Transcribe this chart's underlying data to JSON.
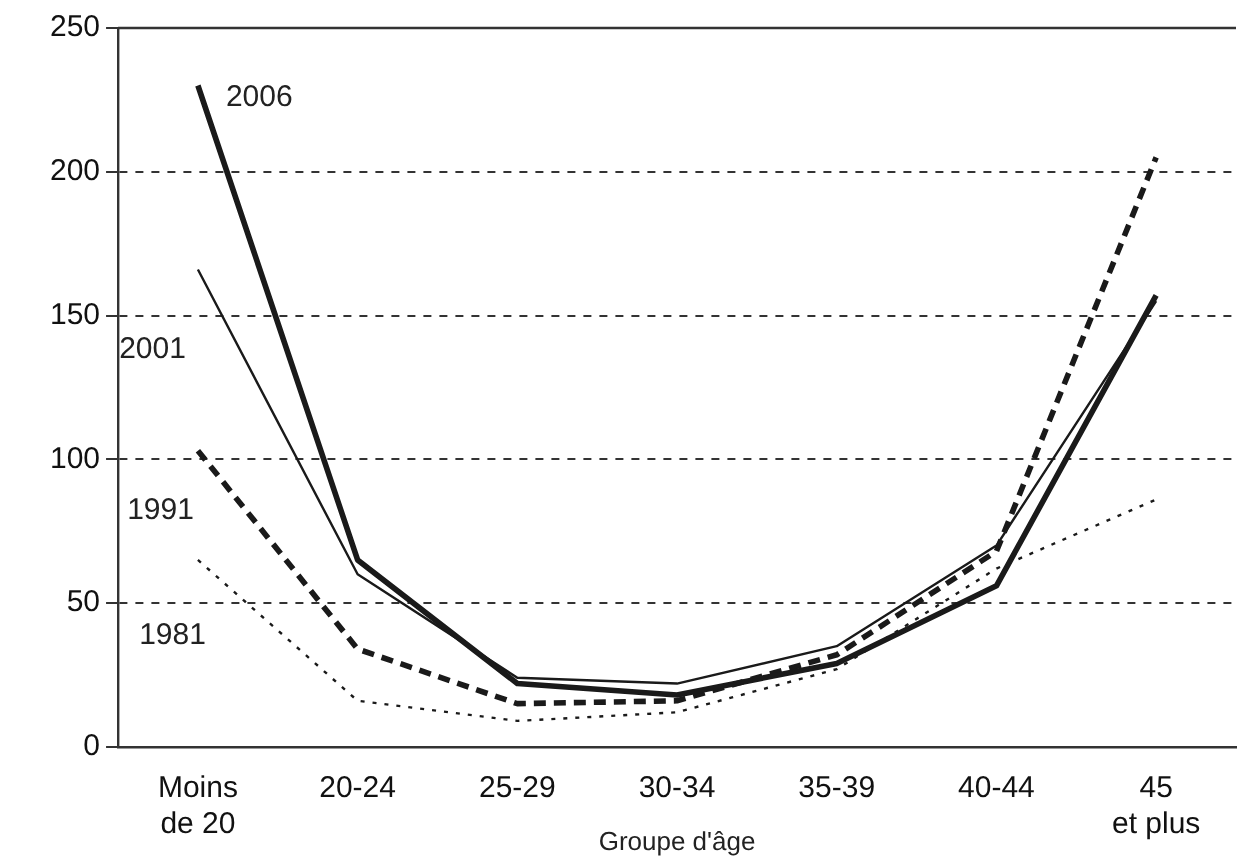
{
  "chart_data": {
    "type": "line",
    "xlabel": "Groupe d'âge",
    "categories": [
      "Moins de 20",
      "20-24",
      "25-29",
      "30-34",
      "35-39",
      "40-44",
      "45 et plus"
    ],
    "series": [
      {
        "name": "2006",
        "color": "#1a1a1a",
        "line_style": "solid",
        "values": [
          230,
          65,
          22,
          18,
          29,
          56,
          157
        ]
      },
      {
        "name": "2001",
        "color": "#1a1a1a",
        "line_style": "solid",
        "values": [
          166,
          60,
          24,
          22,
          35,
          70,
          155
        ]
      },
      {
        "name": "1991",
        "color": "#1a1a1a",
        "line_style": "dashed",
        "values": [
          103,
          34,
          15,
          16,
          32,
          68,
          205
        ]
      },
      {
        "name": "1981",
        "color": "#1a1a1a",
        "line_style": "dotted",
        "values": [
          65,
          16,
          9,
          12,
          27,
          62,
          86
        ]
      }
    ],
    "ylim": [
      0,
      250
    ],
    "yticks": [
      0,
      50,
      100,
      150,
      200,
      250
    ],
    "grid": "y",
    "legend": false,
    "marker": "none"
  }
}
